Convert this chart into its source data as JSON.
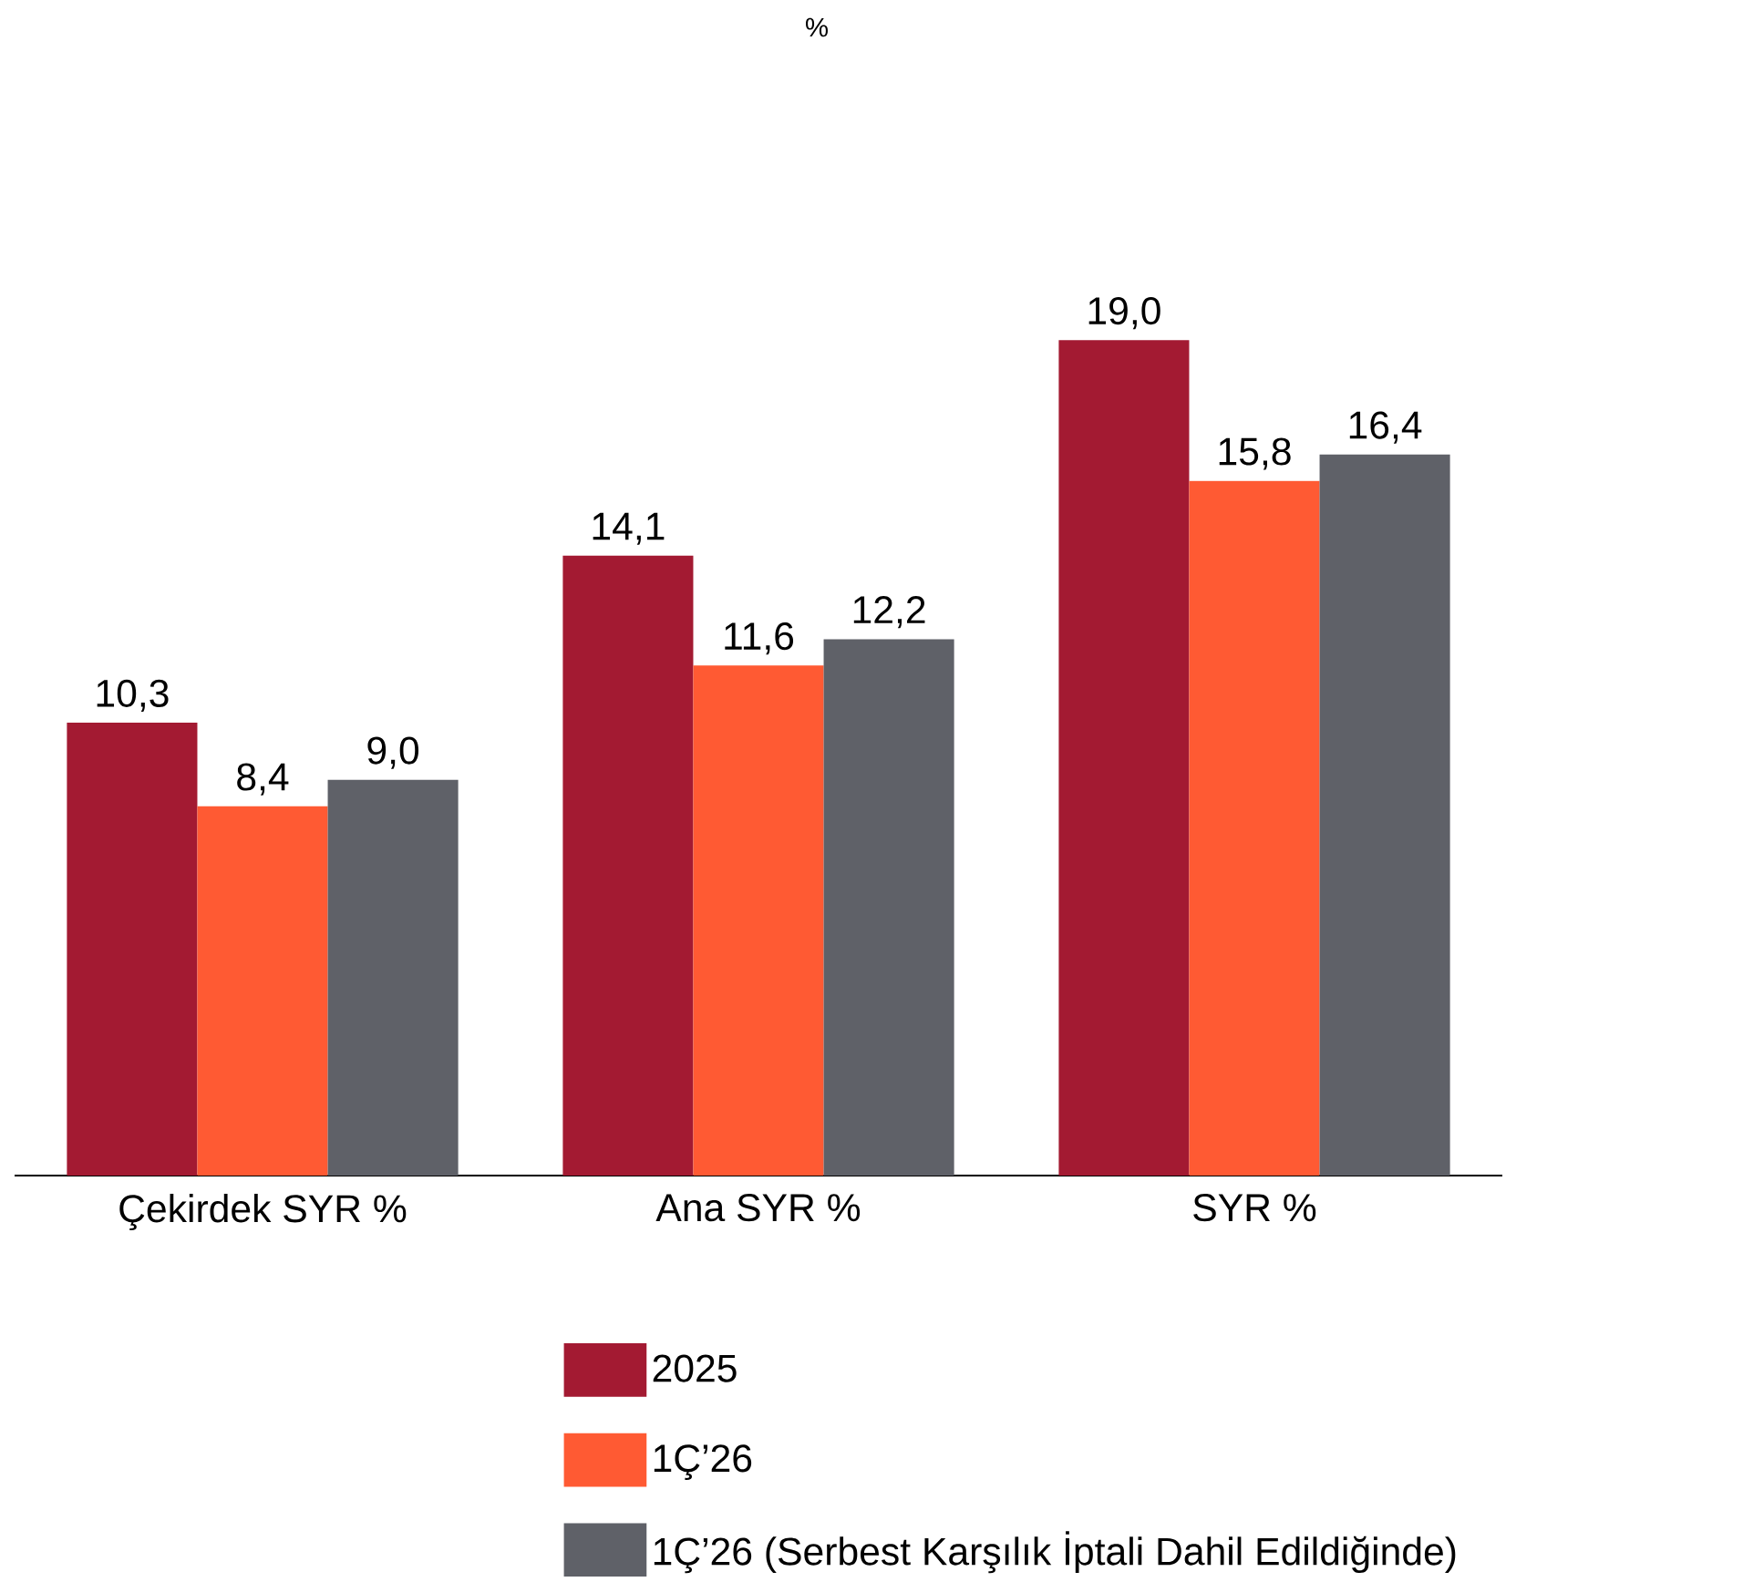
{
  "chart_data": {
    "type": "bar",
    "title": "%",
    "categories": [
      "Çekirdek SYR %",
      "Ana SYR %",
      "SYR %"
    ],
    "series": [
      {
        "name": "2025",
        "color": "#a31a32",
        "values": [
          10.3,
          14.1,
          19.0
        ],
        "value_labels": [
          "10,3",
          "14,1",
          "19,0"
        ]
      },
      {
        "name": "1Ç’26",
        "color": "#ff5a33",
        "values": [
          8.4,
          11.6,
          15.8
        ],
        "value_labels": [
          "8,4",
          "11,6",
          "15,8"
        ]
      },
      {
        "name": "1Ç’26 (Serbest Karşılık İptali Dahil Edildiğinde)",
        "color": "#5f6168",
        "values": [
          9.0,
          12.2,
          16.4
        ],
        "value_labels": [
          "9,0",
          "12,2",
          "16,4"
        ]
      }
    ],
    "legend": "bottom"
  }
}
